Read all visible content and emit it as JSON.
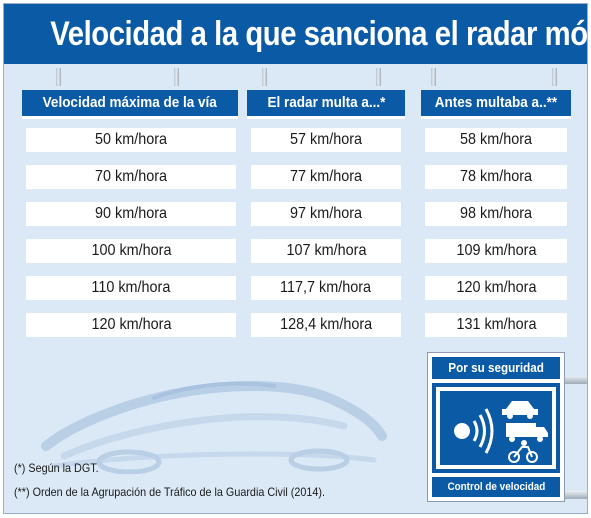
{
  "title": "Velocidad a la que sanciona el radar móvil",
  "columns": [
    "Velocidad máxima de la vía",
    "El radar multa a...*",
    "Antes multaba a..**"
  ],
  "rows": [
    [
      "50 km/hora",
      "57 km/hora",
      "58 km/hora"
    ],
    [
      "70 km/hora",
      "77 km/hora",
      "78 km/hora"
    ],
    [
      "90 km/hora",
      "97 km/hora",
      "98 km/hora"
    ],
    [
      "100 km/hora",
      "107 km/hora",
      "109 km/hora"
    ],
    [
      "110 km/hora",
      "117,7 km/hora",
      "120 km/hora"
    ],
    [
      "120 km/hora",
      "128,4 km/hora",
      "131 km/hora"
    ]
  ],
  "notes": [
    "(*) Según la DGT.",
    "(**) Orden de la Agrupación de Tráfico de la Guardia Civil (2014)."
  ],
  "sign": {
    "top": "Por su seguridad",
    "bottom": "Control de velocidad"
  },
  "icons": {
    "car": "car-silhouette-icon",
    "radar": "speed-camera-icon",
    "traffic": "car-truck-motorcycle-icon"
  },
  "colors": {
    "primary": "#0b5aa6",
    "background": "#dbe9f6"
  }
}
